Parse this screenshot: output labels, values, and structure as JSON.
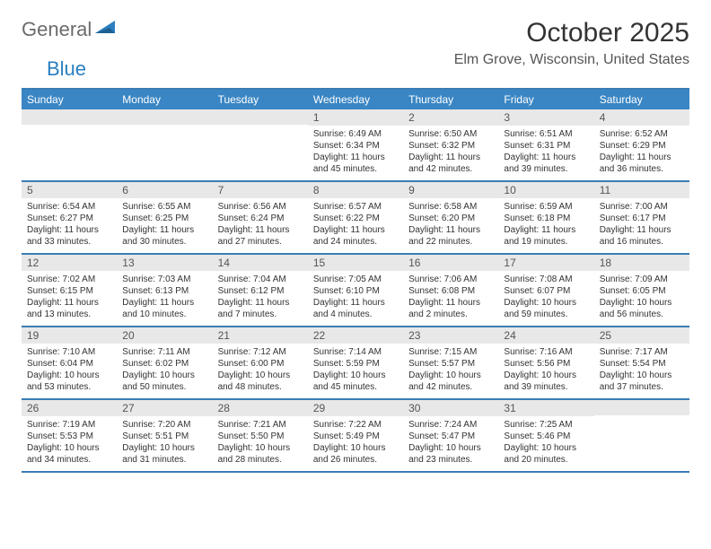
{
  "logo": {
    "text1": "General",
    "text2": "Blue"
  },
  "title": "October 2025",
  "location": "Elm Grove, Wisconsin, United States",
  "colors": {
    "header_bg": "#3a86c4",
    "header_text": "#ffffff",
    "border": "#3a7db5",
    "daynum_bg": "#e8e8e8",
    "body_text": "#333333",
    "logo_gray": "#6b6b6b",
    "logo_blue": "#2a7fbf"
  },
  "day_headers": [
    "Sunday",
    "Monday",
    "Tuesday",
    "Wednesday",
    "Thursday",
    "Friday",
    "Saturday"
  ],
  "weeks": [
    [
      {
        "n": "",
        "sr": "",
        "ss": "",
        "dl": ""
      },
      {
        "n": "",
        "sr": "",
        "ss": "",
        "dl": ""
      },
      {
        "n": "",
        "sr": "",
        "ss": "",
        "dl": ""
      },
      {
        "n": "1",
        "sr": "6:49 AM",
        "ss": "6:34 PM",
        "dl": "11 hours and 45 minutes."
      },
      {
        "n": "2",
        "sr": "6:50 AM",
        "ss": "6:32 PM",
        "dl": "11 hours and 42 minutes."
      },
      {
        "n": "3",
        "sr": "6:51 AM",
        "ss": "6:31 PM",
        "dl": "11 hours and 39 minutes."
      },
      {
        "n": "4",
        "sr": "6:52 AM",
        "ss": "6:29 PM",
        "dl": "11 hours and 36 minutes."
      }
    ],
    [
      {
        "n": "5",
        "sr": "6:54 AM",
        "ss": "6:27 PM",
        "dl": "11 hours and 33 minutes."
      },
      {
        "n": "6",
        "sr": "6:55 AM",
        "ss": "6:25 PM",
        "dl": "11 hours and 30 minutes."
      },
      {
        "n": "7",
        "sr": "6:56 AM",
        "ss": "6:24 PM",
        "dl": "11 hours and 27 minutes."
      },
      {
        "n": "8",
        "sr": "6:57 AM",
        "ss": "6:22 PM",
        "dl": "11 hours and 24 minutes."
      },
      {
        "n": "9",
        "sr": "6:58 AM",
        "ss": "6:20 PM",
        "dl": "11 hours and 22 minutes."
      },
      {
        "n": "10",
        "sr": "6:59 AM",
        "ss": "6:18 PM",
        "dl": "11 hours and 19 minutes."
      },
      {
        "n": "11",
        "sr": "7:00 AM",
        "ss": "6:17 PM",
        "dl": "11 hours and 16 minutes."
      }
    ],
    [
      {
        "n": "12",
        "sr": "7:02 AM",
        "ss": "6:15 PM",
        "dl": "11 hours and 13 minutes."
      },
      {
        "n": "13",
        "sr": "7:03 AM",
        "ss": "6:13 PM",
        "dl": "11 hours and 10 minutes."
      },
      {
        "n": "14",
        "sr": "7:04 AM",
        "ss": "6:12 PM",
        "dl": "11 hours and 7 minutes."
      },
      {
        "n": "15",
        "sr": "7:05 AM",
        "ss": "6:10 PM",
        "dl": "11 hours and 4 minutes."
      },
      {
        "n": "16",
        "sr": "7:06 AM",
        "ss": "6:08 PM",
        "dl": "11 hours and 2 minutes."
      },
      {
        "n": "17",
        "sr": "7:08 AM",
        "ss": "6:07 PM",
        "dl": "10 hours and 59 minutes."
      },
      {
        "n": "18",
        "sr": "7:09 AM",
        "ss": "6:05 PM",
        "dl": "10 hours and 56 minutes."
      }
    ],
    [
      {
        "n": "19",
        "sr": "7:10 AM",
        "ss": "6:04 PM",
        "dl": "10 hours and 53 minutes."
      },
      {
        "n": "20",
        "sr": "7:11 AM",
        "ss": "6:02 PM",
        "dl": "10 hours and 50 minutes."
      },
      {
        "n": "21",
        "sr": "7:12 AM",
        "ss": "6:00 PM",
        "dl": "10 hours and 48 minutes."
      },
      {
        "n": "22",
        "sr": "7:14 AM",
        "ss": "5:59 PM",
        "dl": "10 hours and 45 minutes."
      },
      {
        "n": "23",
        "sr": "7:15 AM",
        "ss": "5:57 PM",
        "dl": "10 hours and 42 minutes."
      },
      {
        "n": "24",
        "sr": "7:16 AM",
        "ss": "5:56 PM",
        "dl": "10 hours and 39 minutes."
      },
      {
        "n": "25",
        "sr": "7:17 AM",
        "ss": "5:54 PM",
        "dl": "10 hours and 37 minutes."
      }
    ],
    [
      {
        "n": "26",
        "sr": "7:19 AM",
        "ss": "5:53 PM",
        "dl": "10 hours and 34 minutes."
      },
      {
        "n": "27",
        "sr": "7:20 AM",
        "ss": "5:51 PM",
        "dl": "10 hours and 31 minutes."
      },
      {
        "n": "28",
        "sr": "7:21 AM",
        "ss": "5:50 PM",
        "dl": "10 hours and 28 minutes."
      },
      {
        "n": "29",
        "sr": "7:22 AM",
        "ss": "5:49 PM",
        "dl": "10 hours and 26 minutes."
      },
      {
        "n": "30",
        "sr": "7:24 AM",
        "ss": "5:47 PM",
        "dl": "10 hours and 23 minutes."
      },
      {
        "n": "31",
        "sr": "7:25 AM",
        "ss": "5:46 PM",
        "dl": "10 hours and 20 minutes."
      },
      {
        "n": "",
        "sr": "",
        "ss": "",
        "dl": ""
      }
    ]
  ],
  "labels": {
    "sunrise": "Sunrise:",
    "sunset": "Sunset:",
    "daylight": "Daylight:"
  }
}
